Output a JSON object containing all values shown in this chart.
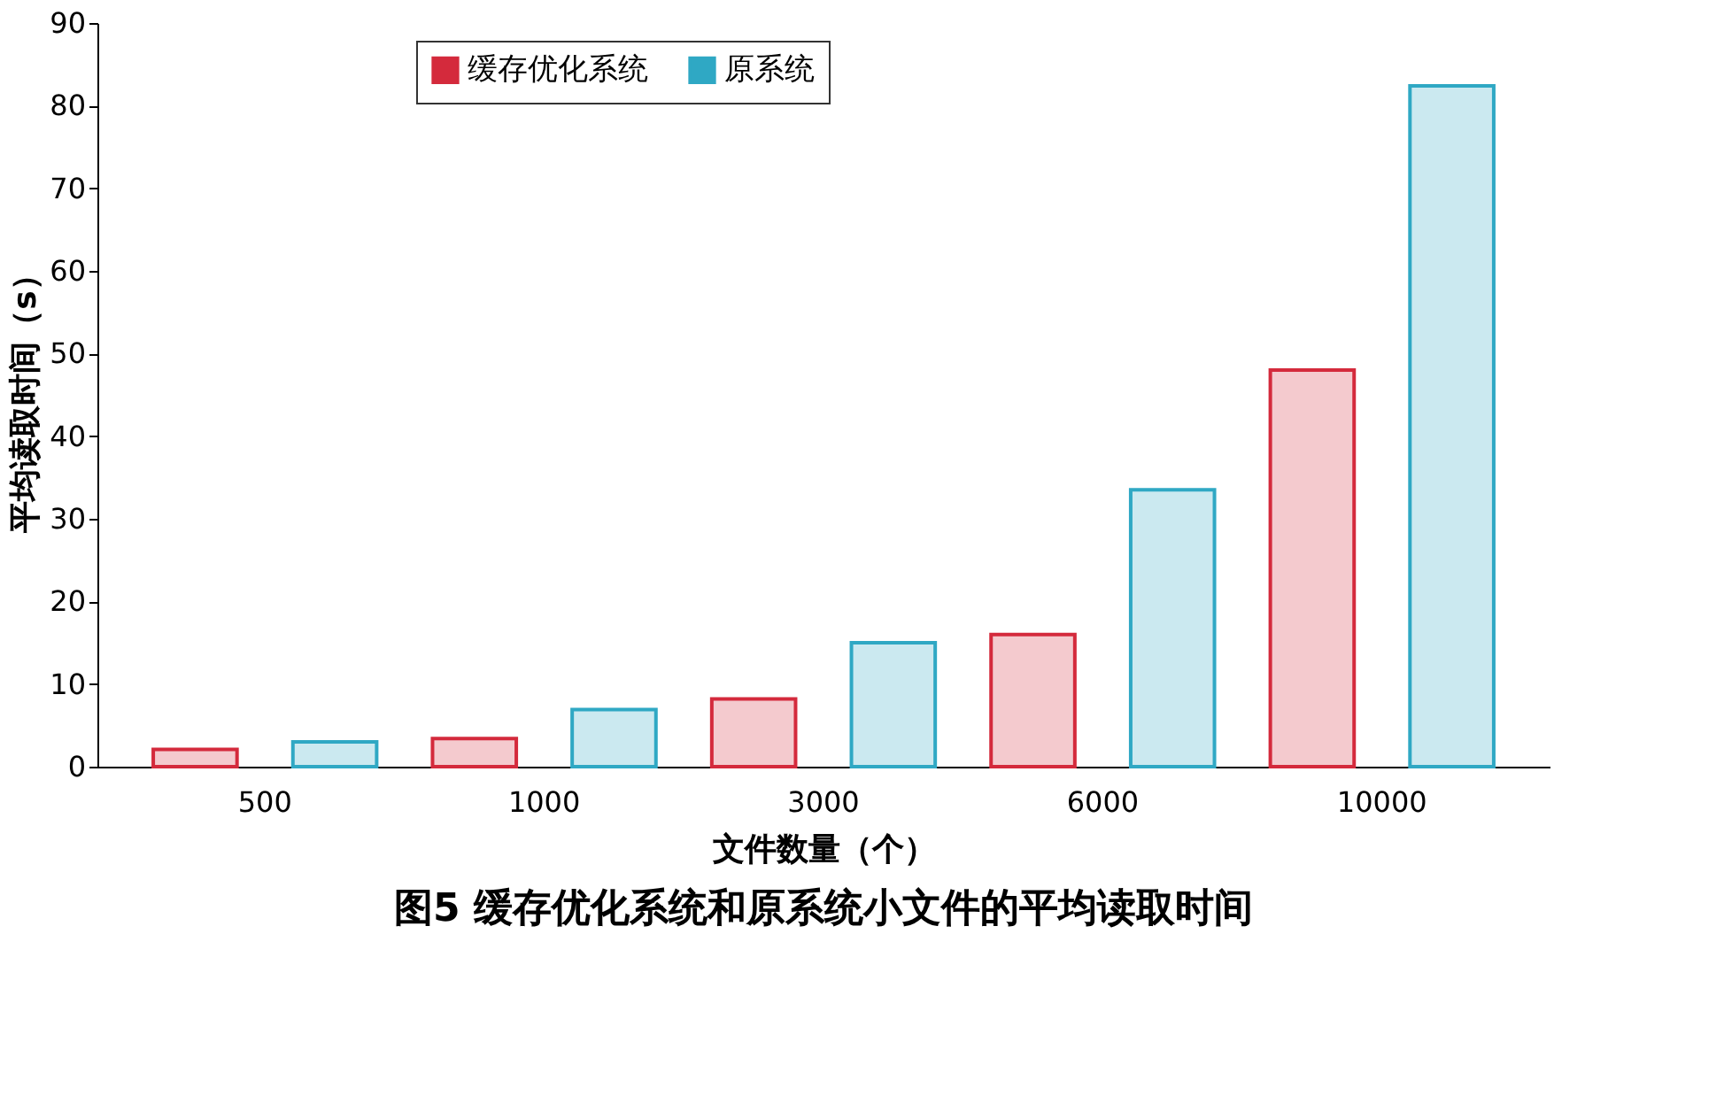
{
  "chart_data": {
    "type": "bar",
    "title": "图5  缓存优化系统和原系统小文件的平均读取时间",
    "xlabel": "文件数量（个）",
    "ylabel": "平均读取时间（s）",
    "categories": [
      "500",
      "1000",
      "3000",
      "6000",
      "10000"
    ],
    "series": [
      {
        "name": "缓存优化系统",
        "color": "#d42a3c",
        "values": [
          2.1,
          3.4,
          8.2,
          16,
          48
        ]
      },
      {
        "name": "原系统",
        "color": "#2fa8c4",
        "values": [
          3.0,
          6.9,
          15,
          33.5,
          82.4
        ]
      }
    ],
    "ylim": [
      0,
      90
    ],
    "yticks": [
      0,
      10,
      20,
      30,
      40,
      50,
      60,
      70,
      80,
      90
    ],
    "grid": false,
    "legend": "top"
  }
}
